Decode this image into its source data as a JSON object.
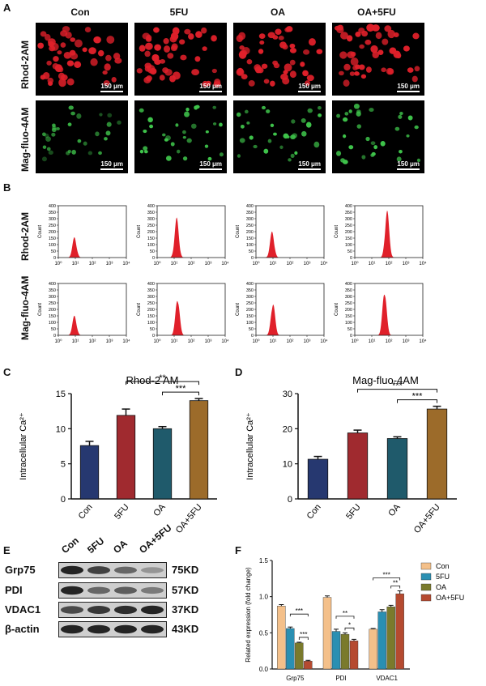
{
  "panels": {
    "A": "A",
    "B": "B",
    "C": "C",
    "D": "D",
    "E": "E",
    "F": "F"
  },
  "groups": [
    "Con",
    "5FU",
    "OA",
    "OA+5FU"
  ],
  "dyes": [
    "Rhod-2AM",
    "Mag-fluo-4AM"
  ],
  "scale_bar": "150 μm",
  "flow": {
    "y_ticks": [
      "0",
      "50",
      "100",
      "150",
      "200",
      "250",
      "300",
      "350",
      "400"
    ],
    "x_ticks": [
      "10⁰",
      "10¹",
      "10²",
      "10³",
      "10⁴"
    ],
    "ylabel": "Count"
  },
  "western": {
    "proteins": [
      "Grp75",
      "PDI",
      "VDAC1",
      "β-actin"
    ],
    "sizes": [
      "75KD",
      "57KD",
      "37KD",
      "43KD"
    ],
    "lanes": [
      "Con",
      "5FU",
      "OA",
      "OA+5FU"
    ],
    "band_intensity": [
      [
        0.9,
        0.75,
        0.55,
        0.3
      ],
      [
        0.9,
        0.55,
        0.6,
        0.45
      ],
      [
        0.7,
        0.8,
        0.85,
        0.9
      ],
      [
        0.9,
        0.9,
        0.9,
        0.9
      ]
    ]
  },
  "colors": {
    "con": "#263870",
    "fu": "#a02a2f",
    "oa": "#1f5a6b",
    "oafu": "#9c6b2a",
    "f_con": "#f4c08a",
    "f_fu": "#2a8fb2",
    "f_oa": "#7a7a2c",
    "f_oafu": "#b54a30",
    "rhod": "#e0202a",
    "mag": "#3ec24a"
  },
  "chart_data": [
    {
      "type": "bar",
      "panel": "C",
      "title": "Rhod-2 AM",
      "ylabel": "Intracellular Ca²⁺",
      "categories": [
        "Con",
        "5FU",
        "OA",
        "OA+5FU"
      ],
      "values": [
        7.6,
        11.9,
        10.0,
        14.0
      ],
      "errors": [
        0.6,
        0.9,
        0.3,
        0.3
      ],
      "ylim": [
        0,
        15
      ],
      "yticks": [
        "0",
        "5",
        "10",
        "15"
      ],
      "significance": [
        {
          "from": "5FU",
          "to": "OA+5FU",
          "label": "**"
        },
        {
          "from": "OA",
          "to": "OA+5FU",
          "label": "***"
        }
      ]
    },
    {
      "type": "bar",
      "panel": "D",
      "title": "Mag-fluo-4AM",
      "ylabel": "Intracellular Ca²⁺",
      "categories": [
        "Con",
        "5FU",
        "OA",
        "OA+5FU"
      ],
      "values": [
        11.3,
        18.8,
        17.2,
        25.6
      ],
      "errors": [
        0.8,
        0.8,
        0.5,
        0.8
      ],
      "ylim": [
        0,
        30
      ],
      "yticks": [
        "0",
        "10",
        "20",
        "30"
      ],
      "significance": [
        {
          "from": "5FU",
          "to": "OA+5FU",
          "label": "***"
        },
        {
          "from": "OA",
          "to": "OA+5FU",
          "label": "***"
        }
      ]
    },
    {
      "type": "bar",
      "panel": "F",
      "ylabel": "Related expression (fold change)",
      "categories": [
        "Grp75",
        "PDI",
        "VDAC1"
      ],
      "ylim": [
        0,
        1.5
      ],
      "yticks": [
        "0.0",
        "0.5",
        "1.0",
        "1.5"
      ],
      "legend_position": "top-right",
      "series": [
        {
          "name": "Con",
          "values": [
            0.87,
            0.99,
            0.55
          ],
          "errors": [
            0.02,
            0.02,
            0.01
          ]
        },
        {
          "name": "5FU",
          "values": [
            0.56,
            0.52,
            0.79
          ],
          "errors": [
            0.02,
            0.03,
            0.03
          ]
        },
        {
          "name": "OA",
          "values": [
            0.36,
            0.48,
            0.86
          ],
          "errors": [
            0.01,
            0.02,
            0.02
          ]
        },
        {
          "name": "OA+5FU",
          "values": [
            0.11,
            0.39,
            1.04
          ],
          "errors": [
            0.01,
            0.02,
            0.04
          ]
        }
      ],
      "significance": [
        {
          "group": "Grp75",
          "from": "5FU",
          "to": "OA+5FU",
          "label": "***"
        },
        {
          "group": "Grp75",
          "from": "OA",
          "to": "OA+5FU",
          "label": "***"
        },
        {
          "group": "PDI",
          "from": "5FU",
          "to": "OA+5FU",
          "label": "**"
        },
        {
          "group": "PDI",
          "from": "OA",
          "to": "OA+5FU",
          "label": "*"
        },
        {
          "group": "VDAC1",
          "from": "Con",
          "to": "OA+5FU",
          "label": "***"
        },
        {
          "group": "VDAC1",
          "from": "OA",
          "to": "OA+5FU",
          "label": "**"
        }
      ]
    }
  ]
}
